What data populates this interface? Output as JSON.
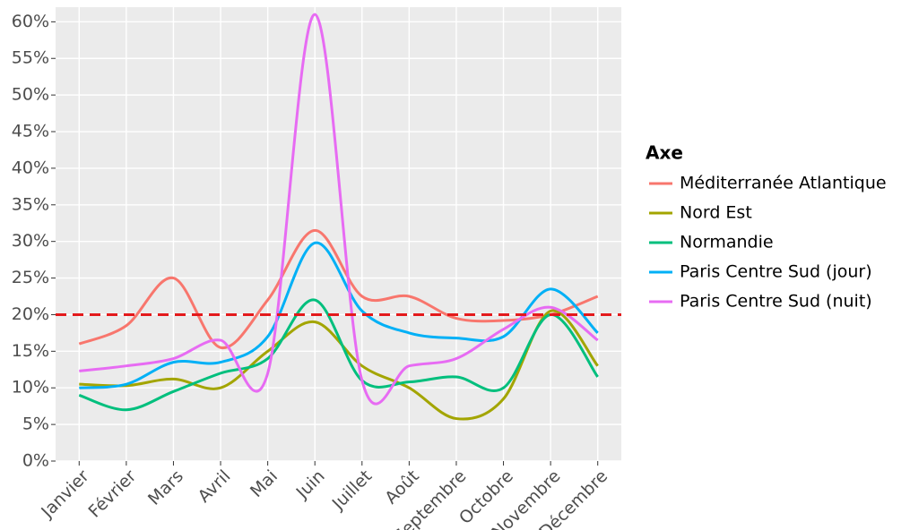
{
  "chart_data": {
    "type": "line",
    "categories": [
      "Janvier",
      "Février",
      "Mars",
      "Avril",
      "Mai",
      "Juin",
      "Juillet",
      "Août",
      "Septembre",
      "Octobre",
      "Novembre",
      "Décembre"
    ],
    "series": [
      {
        "name": "Méditerranée Atlantique",
        "color": "#F8766D",
        "values": [
          16,
          18.5,
          25,
          15.5,
          22,
          31.5,
          22.5,
          22.5,
          19.5,
          19.2,
          20,
          22.5
        ]
      },
      {
        "name": "Nord Est",
        "color": "#A3A500",
        "values": [
          10.5,
          10.3,
          11.2,
          10,
          15,
          19,
          13,
          10,
          5.8,
          8.5,
          20.5,
          13
        ]
      },
      {
        "name": "Normandie",
        "color": "#00BF7D",
        "values": [
          9,
          7,
          9.5,
          12,
          14,
          22,
          11,
          10.8,
          11.5,
          10,
          20,
          11.5
        ]
      },
      {
        "name": "Paris Centre Sud (jour)",
        "color": "#00B0F6",
        "values": [
          10,
          10.5,
          13.5,
          13.5,
          17,
          29.8,
          20.5,
          17.5,
          16.8,
          17,
          23.5,
          17.5
        ]
      },
      {
        "name": "Paris Centre Sud (nuit)",
        "color": "#E76BF3",
        "values": [
          12.3,
          13,
          14,
          16.5,
          12,
          61,
          11,
          13,
          14,
          18,
          21,
          16.5
        ]
      }
    ],
    "ylim": [
      0,
      62
    ],
    "yticks": [
      {
        "value": 0,
        "label": "0%"
      },
      {
        "value": 5,
        "label": "5%"
      },
      {
        "value": 10,
        "label": "10%"
      },
      {
        "value": 15,
        "label": "15%"
      },
      {
        "value": 20,
        "label": "20%"
      },
      {
        "value": 25,
        "label": "25%"
      },
      {
        "value": 30,
        "label": "30%"
      },
      {
        "value": 35,
        "label": "35%"
      },
      {
        "value": 40,
        "label": "40%"
      },
      {
        "value": 45,
        "label": "45%"
      },
      {
        "value": 50,
        "label": "50%"
      },
      {
        "value": 55,
        "label": "55%"
      },
      {
        "value": 60,
        "label": "60%"
      }
    ],
    "reference_line": {
      "value": 20,
      "color": "#E31A1C"
    },
    "legend_title": "Axe",
    "legend_position": "right",
    "grid": true
  }
}
